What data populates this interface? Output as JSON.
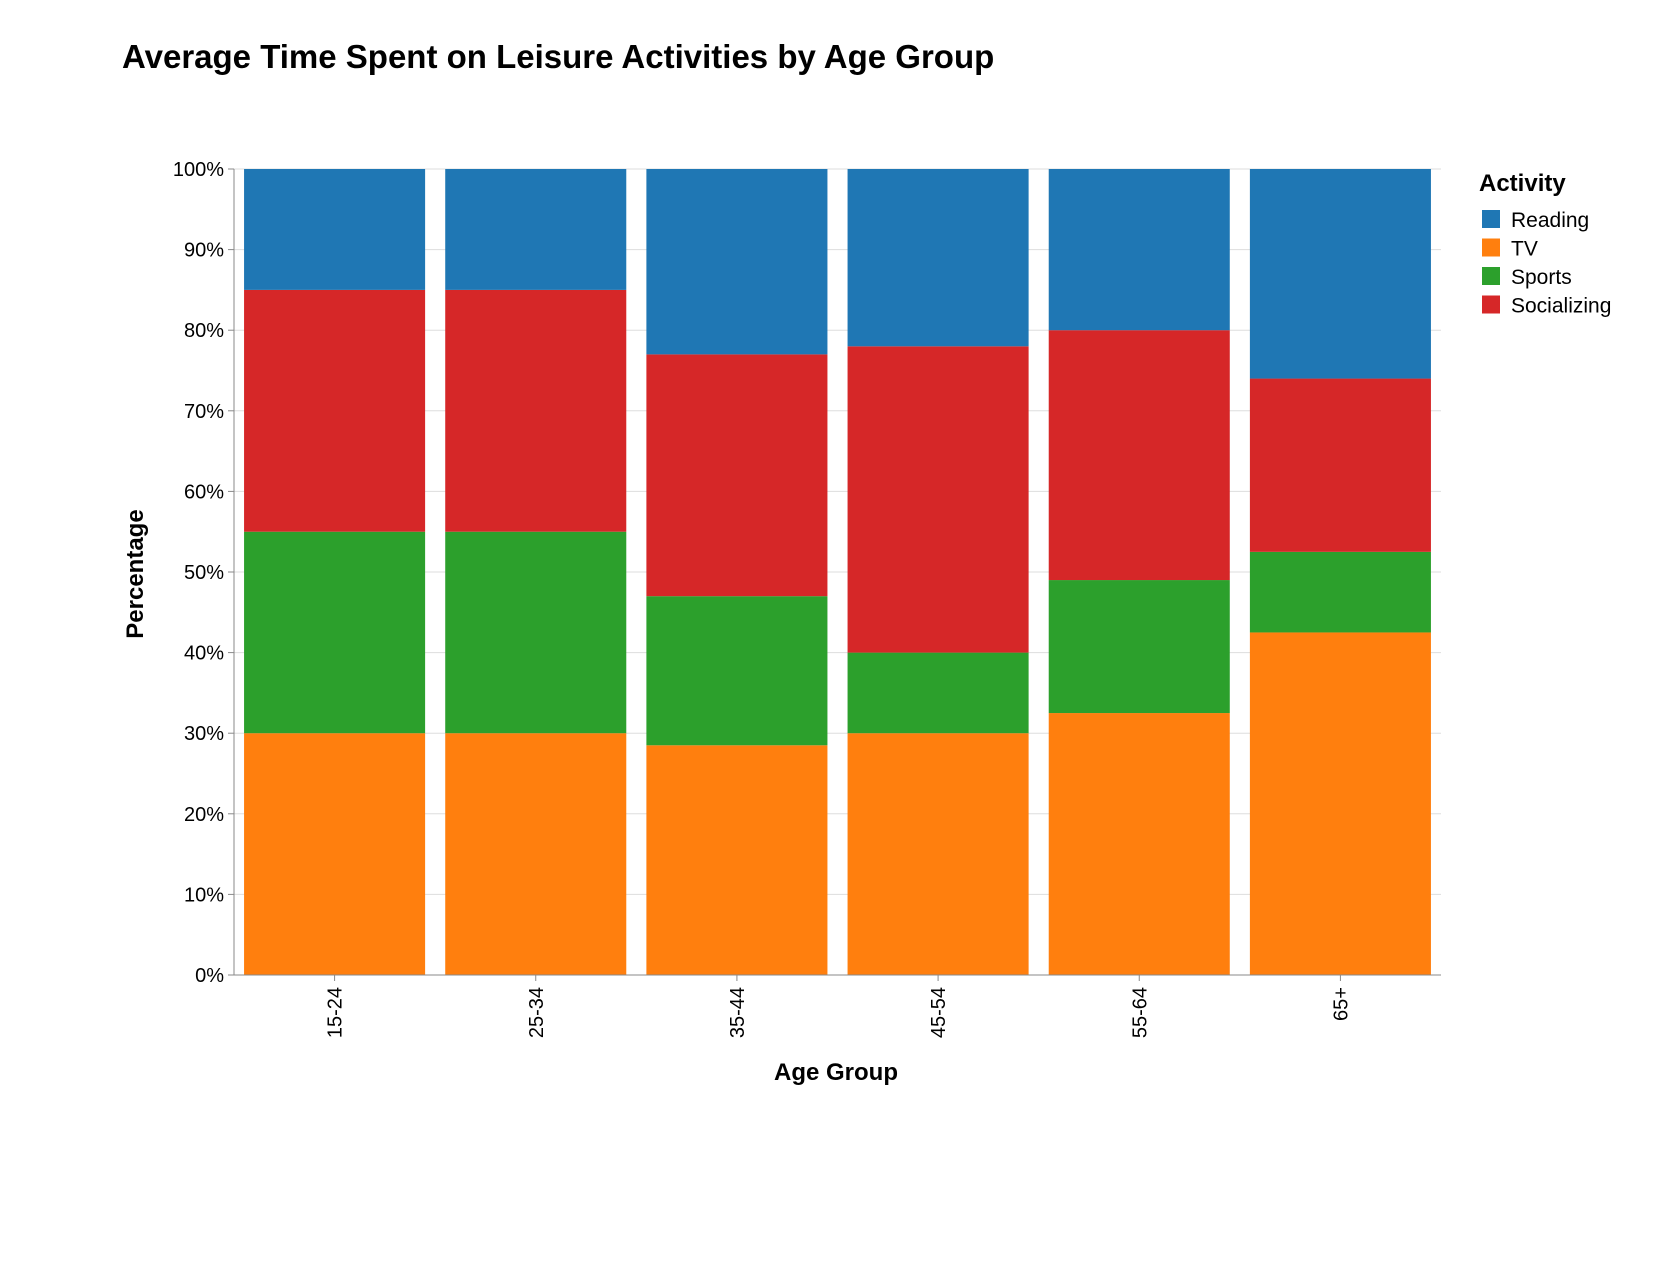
{
  "chart_data": {
    "type": "bar",
    "stacked": true,
    "normalized": true,
    "title": "Average Time Spent on Leisure Activities by Age Group",
    "xlabel": "Age Group",
    "ylabel": "Percentage",
    "ylim": [
      0,
      100
    ],
    "y_ticks": [
      "0%",
      "10%",
      "20%",
      "30%",
      "40%",
      "50%",
      "60%",
      "70%",
      "80%",
      "90%",
      "100%"
    ],
    "grid": true,
    "legend_title": "Activity",
    "legend_position": "right",
    "categories": [
      "15-24",
      "25-34",
      "35-44",
      "45-54",
      "55-64",
      "65+"
    ],
    "series": [
      {
        "name": "TV",
        "color": "#ff7f0e",
        "values": [
          30,
          30,
          28.5,
          30,
          32.5,
          42.5
        ]
      },
      {
        "name": "Sports",
        "color": "#2ca02c",
        "values": [
          25,
          25,
          18.5,
          10,
          16.5,
          10
        ]
      },
      {
        "name": "Socializing",
        "color": "#d62728",
        "values": [
          30,
          30,
          30,
          38,
          31,
          21.5
        ]
      },
      {
        "name": "Reading",
        "color": "#1f77b4",
        "values": [
          15,
          15,
          23,
          22,
          20,
          26
        ]
      }
    ],
    "legend_order": [
      "Reading",
      "TV",
      "Sports",
      "Socializing"
    ]
  }
}
